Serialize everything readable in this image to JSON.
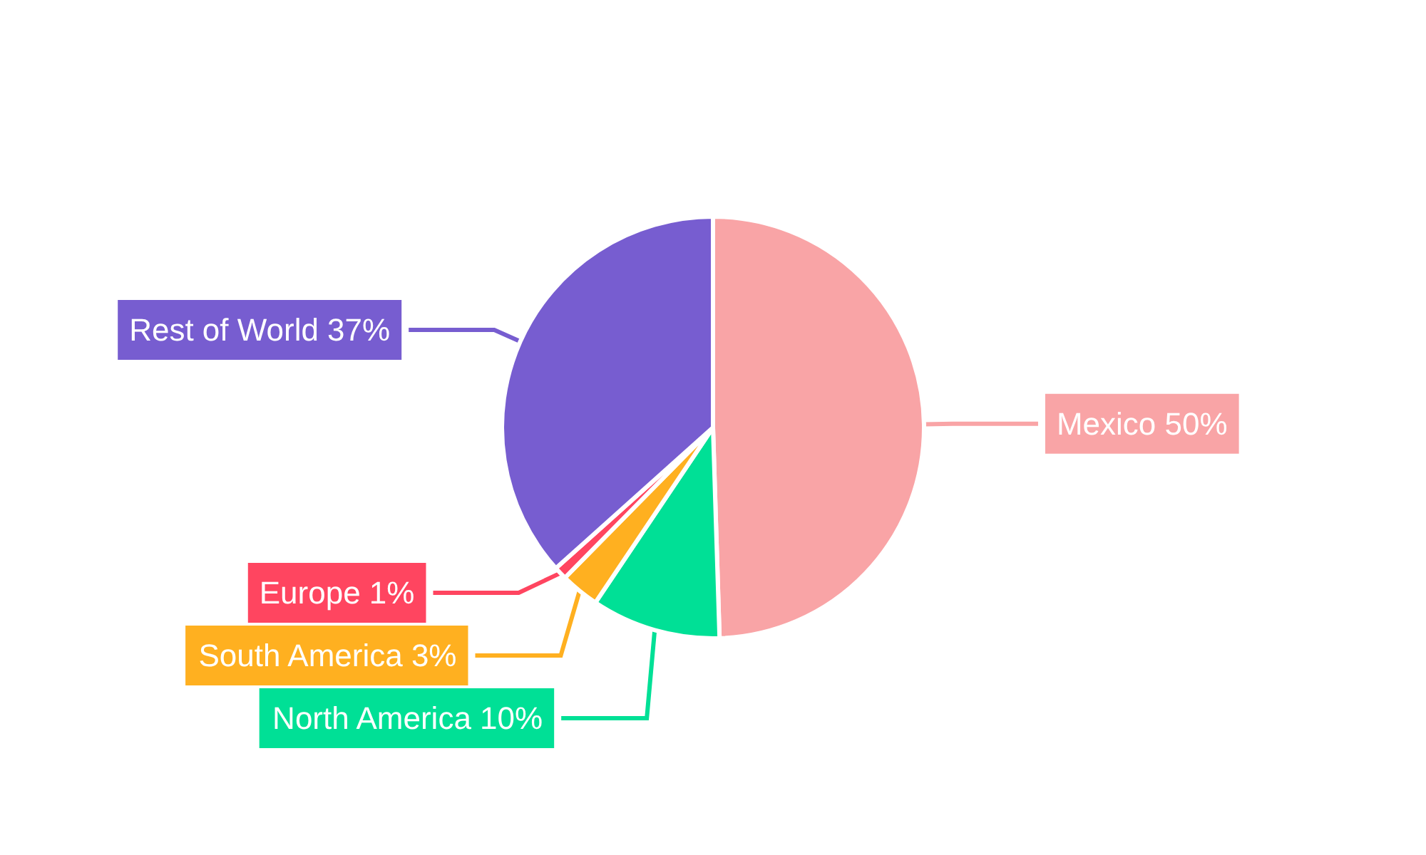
{
  "chart_data": {
    "type": "pie",
    "categories": [
      "Mexico",
      "North America",
      "South America",
      "Europe",
      "Rest of World"
    ],
    "values": [
      50,
      10,
      3,
      1,
      37
    ],
    "value_labels": [
      "50%",
      "10%",
      "3%",
      "1%",
      "37%"
    ],
    "colors": [
      "#f9a4a6",
      "#00e096",
      "#ffb020",
      "#ff4560",
      "#775dd0"
    ],
    "legend": false
  }
}
